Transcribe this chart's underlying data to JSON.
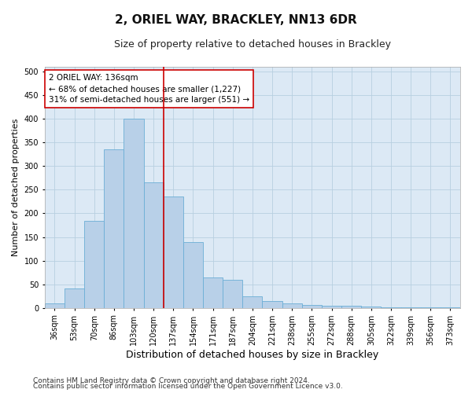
{
  "title": "2, ORIEL WAY, BRACKLEY, NN13 6DR",
  "subtitle": "Size of property relative to detached houses in Brackley",
  "xlabel": "Distribution of detached houses by size in Brackley",
  "ylabel": "Number of detached properties",
  "categories": [
    "36sqm",
    "53sqm",
    "70sqm",
    "86sqm",
    "103sqm",
    "120sqm",
    "137sqm",
    "154sqm",
    "171sqm",
    "187sqm",
    "204sqm",
    "221sqm",
    "238sqm",
    "255sqm",
    "272sqm",
    "288sqm",
    "305sqm",
    "322sqm",
    "339sqm",
    "356sqm",
    "373sqm"
  ],
  "values": [
    10,
    42,
    185,
    335,
    400,
    265,
    235,
    140,
    65,
    60,
    25,
    15,
    10,
    7,
    5,
    4,
    3,
    2,
    1,
    1,
    2
  ],
  "bar_color": "#b8d0e8",
  "bar_edge_color": "#6baed6",
  "vline_color": "#cc0000",
  "vline_pos": 5.5,
  "annotation_text": "2 ORIEL WAY: 136sqm\n← 68% of detached houses are smaller (1,227)\n31% of semi-detached houses are larger (551) →",
  "annotation_box_color": "#ffffff",
  "annotation_box_edge_color": "#cc0000",
  "ylim": [
    0,
    510
  ],
  "yticks": [
    0,
    50,
    100,
    150,
    200,
    250,
    300,
    350,
    400,
    450,
    500
  ],
  "background_color": "#ffffff",
  "plot_bg_color": "#dce9f5",
  "grid_color": "#b8cfe0",
  "footer1": "Contains HM Land Registry data © Crown copyright and database right 2024.",
  "footer2": "Contains public sector information licensed under the Open Government Licence v3.0.",
  "title_fontsize": 11,
  "subtitle_fontsize": 9,
  "xlabel_fontsize": 9,
  "ylabel_fontsize": 8,
  "tick_fontsize": 7,
  "annotation_fontsize": 7.5,
  "footer_fontsize": 6.5
}
